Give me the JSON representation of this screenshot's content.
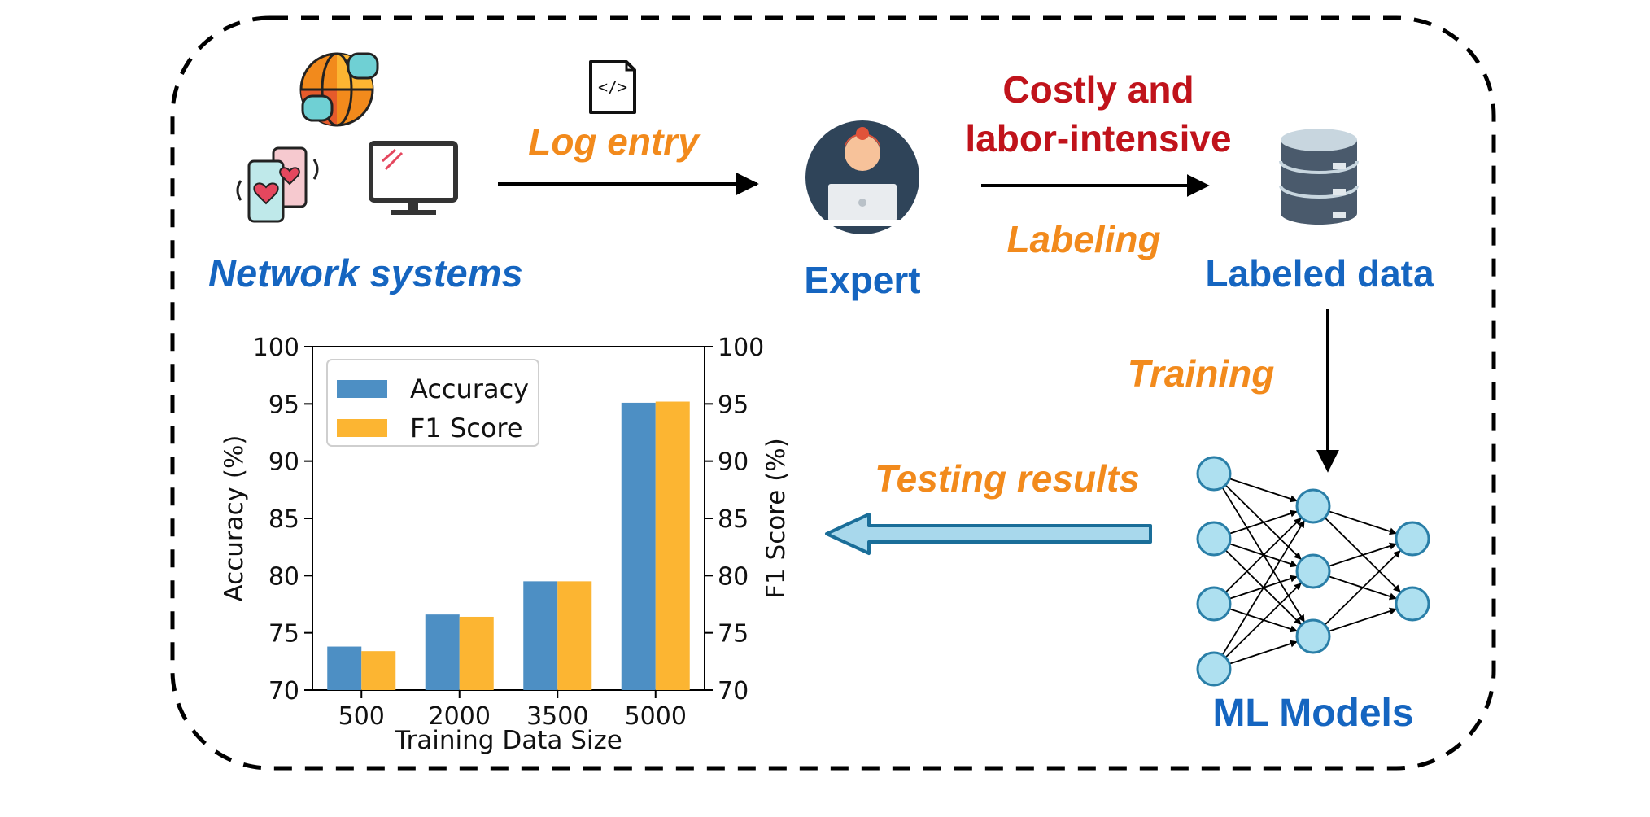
{
  "labels": {
    "network_systems": "Network systems",
    "log_entry": "Log entry",
    "expert": "Expert",
    "costly_line1": "Costly and",
    "costly_line2": "labor-intensive",
    "labeling": "Labeling",
    "labeled_data": "Labeled data",
    "training": "Training",
    "testing_results": "Testing results",
    "ml_models": "ML Models"
  },
  "icons": [
    "globe-chat-icon",
    "smartphones-icon",
    "monitor-icon",
    "code-file-icon",
    "expert-avatar-icon",
    "database-icon",
    "neural-network-icon"
  ],
  "colors": {
    "blue_label": "#1565c0",
    "orange_label": "#f28a1c",
    "red_label": "#c0131b",
    "accuracy_bar": "#4d8fc4",
    "f1_bar": "#fcb532",
    "arrow_fill": "#a8d8ec",
    "arrow_stroke": "#1a6e99",
    "node_fill": "#aee0f0",
    "node_stroke": "#2a7fa8"
  },
  "chart_data": {
    "type": "bar",
    "categories": [
      "500",
      "2000",
      "3500",
      "5000"
    ],
    "series": [
      {
        "name": "Accuracy",
        "values": [
          73.8,
          76.6,
          79.5,
          95.1
        ]
      },
      {
        "name": "F1 Score",
        "values": [
          73.4,
          76.4,
          79.5,
          95.2
        ]
      }
    ],
    "xlabel": "Training Data Size",
    "ylabel": "Accuracy (%)",
    "ylabel_right": "F1 Score (%)",
    "ylim": [
      70,
      100
    ],
    "yticks": [
      "70",
      "75",
      "80",
      "85",
      "90",
      "95",
      "100"
    ],
    "legend_position": "top-left",
    "grid": false
  }
}
